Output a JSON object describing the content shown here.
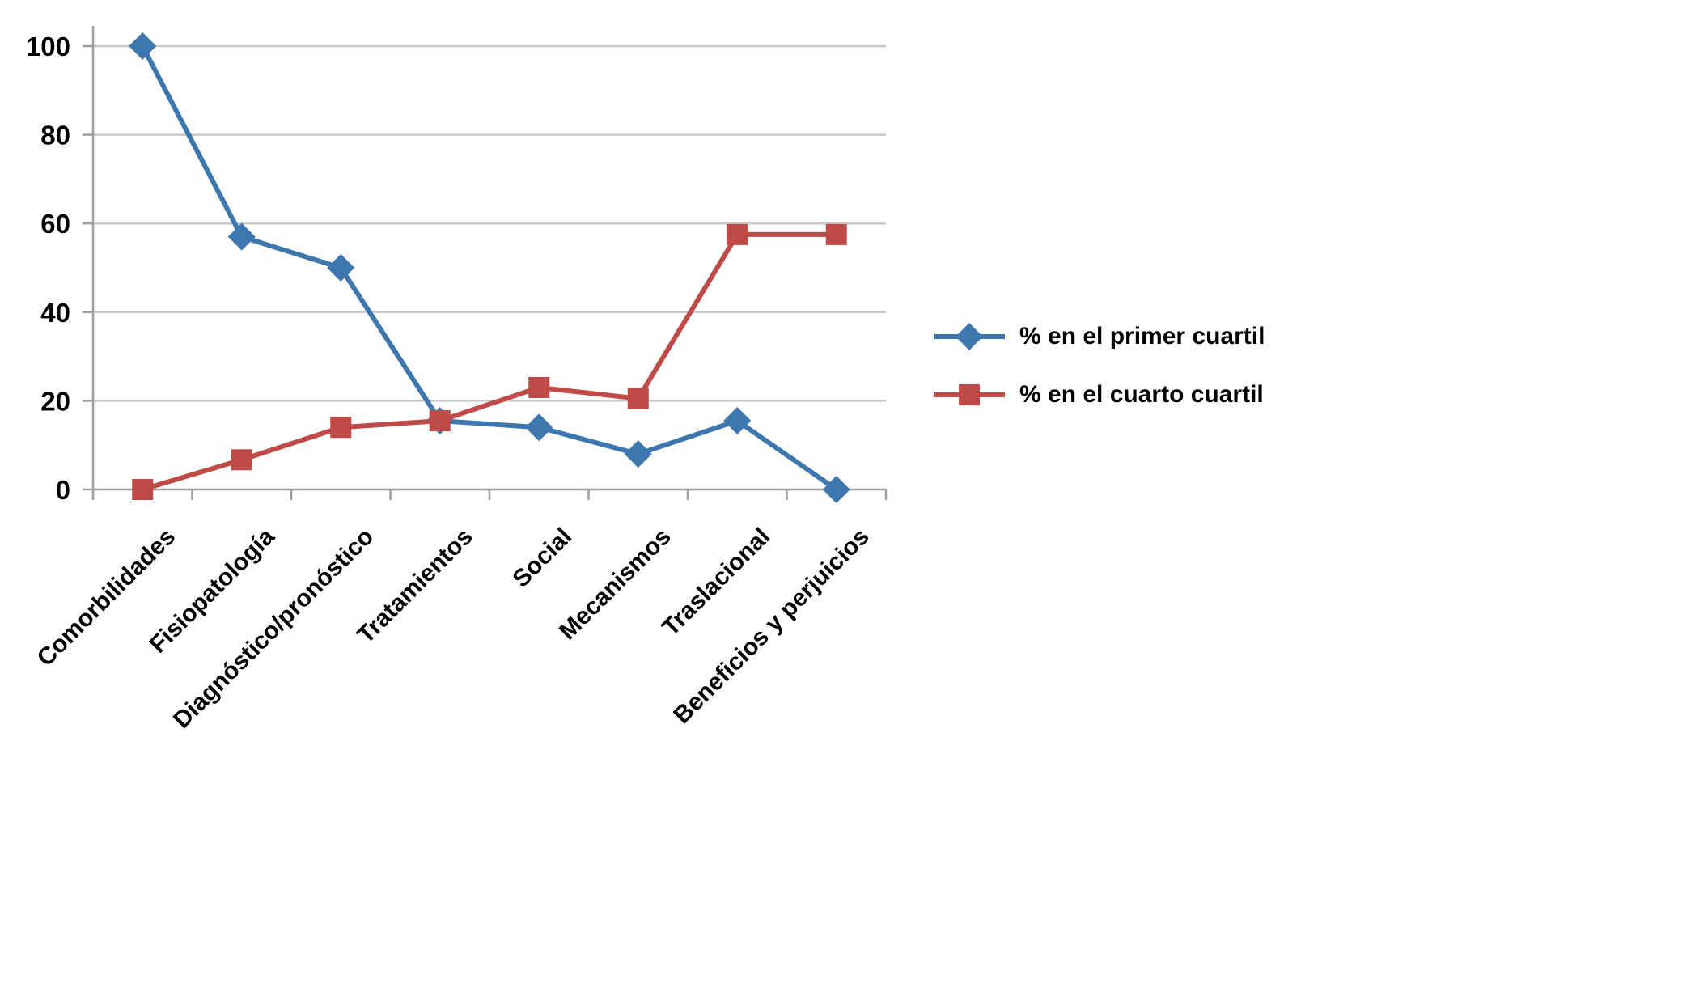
{
  "chart_data": {
    "type": "line",
    "categories": [
      "Comorbilidades",
      "Fisiopatología",
      "Diagnóstico/pronóstico",
      "Tratamientos",
      "Social",
      "Mecanismos",
      "Traslacional",
      "Beneficios y perjuicios"
    ],
    "series": [
      {
        "name": "% en el primer cuartil",
        "marker": "diamond",
        "color": "#3D77AD",
        "values": [
          100,
          57,
          50,
          15.5,
          14,
          8,
          15.5,
          0
        ]
      },
      {
        "name": "% en el cuarto cuartil",
        "marker": "square",
        "color": "#BE4B48",
        "values": [
          0,
          6.7,
          14,
          15.5,
          23,
          20.5,
          57.5,
          57.5
        ]
      }
    ],
    "title": "",
    "xlabel": "",
    "ylabel": "",
    "ylim": [
      0,
      100
    ],
    "yticks": [
      0,
      20,
      40,
      60,
      80,
      100
    ],
    "grid": "horizontal",
    "legend_position": "right",
    "gridline_color": "#C9C9C9",
    "axis_color": "#9E9E9E",
    "label_color": "#000000"
  }
}
